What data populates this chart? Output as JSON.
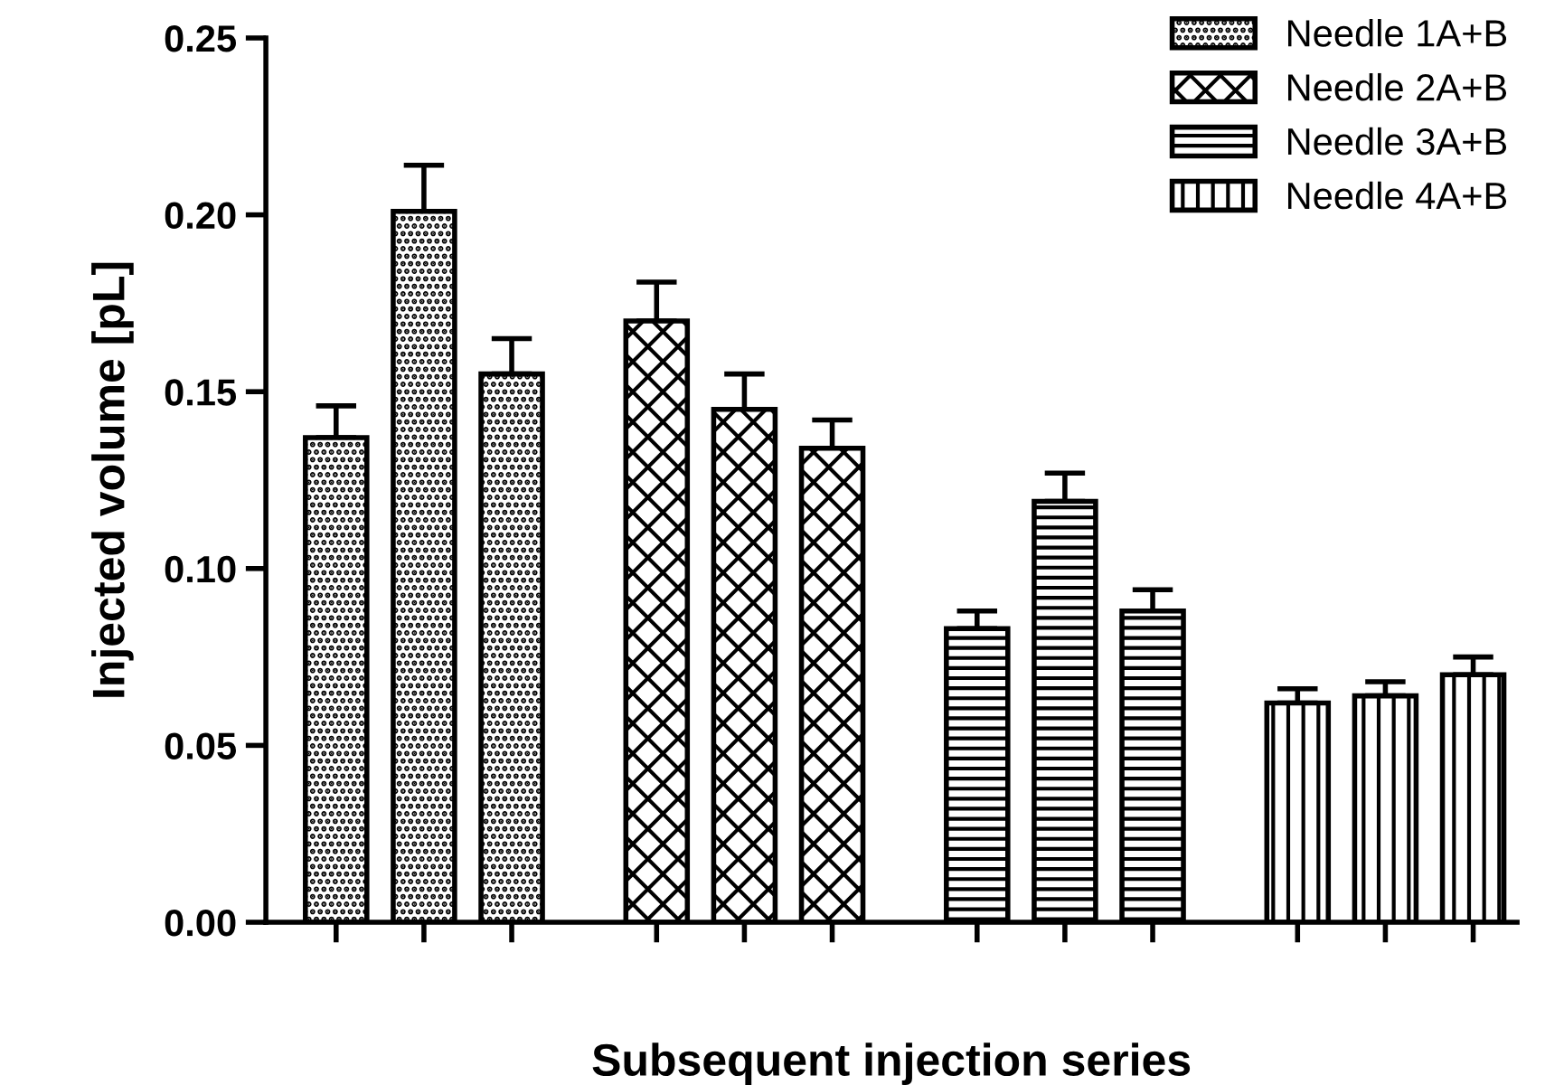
{
  "chart_data": {
    "type": "bar",
    "xlabel": "Subsequent injection series",
    "ylabel": "Injected volume [pL]",
    "categories": [
      null,
      null,
      null,
      null,
      null,
      null,
      null,
      null,
      null,
      null,
      null,
      null
    ],
    "series": [
      {
        "name": "Needle 1A+B",
        "color": "#000000",
        "values": [
          0.137,
          0.201,
          0.155,
          null,
          null,
          null,
          null,
          null,
          null,
          null,
          null,
          null
        ],
        "errors": [
          0.009,
          0.013,
          0.01,
          null,
          null,
          null,
          null,
          null,
          null,
          null,
          null,
          null
        ]
      },
      {
        "name": "Needle 2A+B",
        "color": "#000000",
        "values": [
          null,
          null,
          null,
          0.17,
          0.145,
          0.134,
          null,
          null,
          null,
          null,
          null,
          null
        ],
        "errors": [
          null,
          null,
          null,
          0.011,
          0.01,
          0.008,
          null,
          null,
          null,
          null,
          null,
          null
        ]
      },
      {
        "name": "Needle 3A+B",
        "color": "#000000",
        "values": [
          null,
          null,
          null,
          null,
          null,
          null,
          0.083,
          0.119,
          0.088,
          null,
          null,
          null
        ],
        "errors": [
          null,
          null,
          null,
          null,
          null,
          null,
          0.005,
          0.008,
          0.006,
          null,
          null,
          null
        ]
      },
      {
        "name": "Needle 4A+B",
        "color": "#000000",
        "values": [
          null,
          null,
          null,
          null,
          null,
          null,
          null,
          null,
          null,
          0.062,
          0.064,
          0.07
        ],
        "errors": [
          null,
          null,
          null,
          null,
          null,
          null,
          null,
          null,
          null,
          0.004,
          0.004,
          0.005
        ]
      }
    ],
    "ylim": [
      0,
      0.25
    ],
    "yticks": [
      {
        "value": 0,
        "label": "0.00"
      },
      {
        "value": 0.05,
        "label": "0.05"
      },
      {
        "value": 0.1,
        "label": "0.10"
      },
      {
        "value": 0.15,
        "label": "0.15"
      },
      {
        "value": 0.2,
        "label": "0.20"
      },
      {
        "value": 0.25,
        "label": "0.25"
      }
    ],
    "tick_labels": "y",
    "grid": false,
    "legend": "top right"
  }
}
